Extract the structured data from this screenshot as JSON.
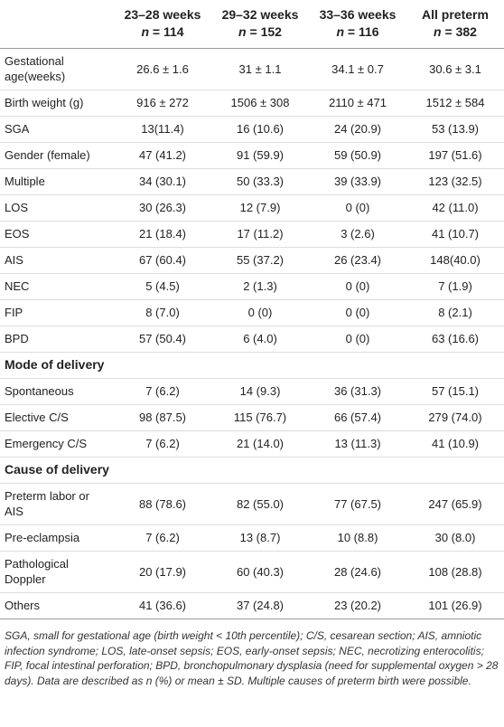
{
  "table": {
    "columns": [
      {
        "title": "23–28 weeks",
        "n": "n",
        "count": "= 114"
      },
      {
        "title": "29–32 weeks",
        "n": "n",
        "count": "= 152"
      },
      {
        "title": "33–36 weeks",
        "n": "n",
        "count": "= 116"
      },
      {
        "title": "All preterm",
        "n": "n",
        "count": "= 382"
      }
    ],
    "rows": [
      {
        "label": "Gestational age(weeks)",
        "values": [
          "26.6 ± 1.6",
          "31 ± 1.1",
          "34.1 ± 0.7",
          "30.6 ± 3.1"
        ]
      },
      {
        "label": "Birth weight (g)",
        "values": [
          "916 ± 272",
          "1506 ± 308",
          "2110 ± 471",
          "1512 ± 584"
        ]
      },
      {
        "label": "SGA",
        "values": [
          "13(11.4)",
          "16 (10.6)",
          "24 (20.9)",
          "53 (13.9)"
        ]
      },
      {
        "label": "Gender (female)",
        "values": [
          "47 (41.2)",
          "91 (59.9)",
          "59 (50.9)",
          "197 (51.6)"
        ]
      },
      {
        "label": "Multiple",
        "values": [
          "34 (30.1)",
          "50 (33.3)",
          "39 (33.9)",
          "123 (32.5)"
        ]
      },
      {
        "label": "LOS",
        "values": [
          "30 (26.3)",
          "12 (7.9)",
          "0 (0)",
          "42 (11.0)"
        ]
      },
      {
        "label": "EOS",
        "values": [
          "21 (18.4)",
          "17 (11.2)",
          "3 (2.6)",
          "41 (10.7)"
        ]
      },
      {
        "label": "AIS",
        "values": [
          "67 (60.4)",
          "55 (37.2)",
          "26 (23.4)",
          "148(40.0)"
        ]
      },
      {
        "label": "NEC",
        "values": [
          "5 (4.5)",
          "2 (1.3)",
          "0 (0)",
          "7 (1.9)"
        ]
      },
      {
        "label": "FIP",
        "values": [
          "8 (7.0)",
          "0 (0)",
          "0 (0)",
          "8 (2.1)"
        ]
      },
      {
        "label": "BPD",
        "values": [
          "57 (50.4)",
          "6 (4.0)",
          "0 (0)",
          "63 (16.6)"
        ]
      },
      {
        "section": "Mode of delivery"
      },
      {
        "label": "Spontaneous",
        "values": [
          "7 (6.2)",
          "14 (9.3)",
          "36 (31.3)",
          "57 (15.1)"
        ]
      },
      {
        "label": "Elective C/S",
        "values": [
          "98 (87.5)",
          "115 (76.7)",
          "66 (57.4)",
          "279 (74.0)"
        ]
      },
      {
        "label": "Emergency C/S",
        "values": [
          "7 (6.2)",
          "21 (14.0)",
          "13 (11.3)",
          "41 (10.9)"
        ]
      },
      {
        "section": "Cause of delivery"
      },
      {
        "label": "Preterm labor or AIS",
        "values": [
          "88 (78.6)",
          "82 (55.0)",
          "77 (67.5)",
          "247 (65.9)"
        ]
      },
      {
        "label": "Pre-eclampsia",
        "values": [
          "7 (6.2)",
          "13 (8.7)",
          "10 (8.8)",
          "30 (8.0)"
        ]
      },
      {
        "label": "Pathological Doppler",
        "values": [
          "20 (17.9)",
          "60 (40.3)",
          "28 (24.6)",
          "108 (28.8)"
        ]
      },
      {
        "label": "Others",
        "values": [
          "41 (36.6)",
          "37 (24.8)",
          "23 (20.2)",
          "101 (26.9)"
        ]
      }
    ]
  },
  "footnote": "SGA, small for gestational age (birth weight < 10th percentile); C/S, cesarean section; AIS, amniotic infection syndrome; LOS, late-onset sepsis; EOS, early-onset sepsis; NEC, necrotizing enterocolitis; FIP, focal intestinal perforation; BPD, bronchopulmonary dysplasia (need for supplemental oxygen > 28 days). Data are described as n (%) or mean ± SD. Multiple causes of preterm birth were possible."
}
